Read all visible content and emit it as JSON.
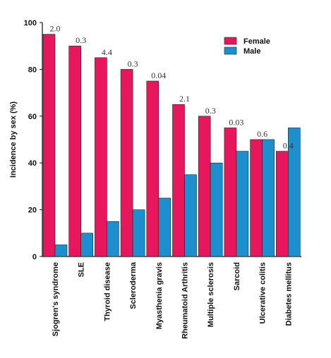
{
  "chart_data": {
    "type": "bar",
    "ylabel": "Incidence by sex (%)",
    "xlabel": "",
    "ylim": [
      0,
      100
    ],
    "yticks": [
      "0",
      "20",
      "40",
      "60",
      "80",
      "100"
    ],
    "ytick_values": [
      0,
      20,
      40,
      60,
      80,
      100
    ],
    "categories": [
      "Sjogren's syndrome",
      "SLE",
      "Thyroid disease",
      "Scleroderma",
      "Myasthenia gravis",
      "Rheumatoid Arthritis",
      "Multiple sclerosis",
      "Sarcoid",
      "Ulcerative colitis",
      "Diabetes mellitus"
    ],
    "annotations": [
      "2.0",
      "0.3",
      "4.4",
      "0.3",
      "0.04",
      "2.1",
      "0.3",
      "0.03",
      "0.6",
      "0.4"
    ],
    "series": [
      {
        "name": "Female",
        "color": "#e8175d",
        "values": [
          95,
          90,
          85,
          80,
          75,
          65,
          60,
          55,
          50,
          45
        ]
      },
      {
        "name": "Male",
        "color": "#1e8fce",
        "values": [
          5,
          10,
          15,
          20,
          25,
          35,
          40,
          45,
          50,
          55
        ]
      }
    ],
    "legend_position": "top-right",
    "grid": false
  }
}
